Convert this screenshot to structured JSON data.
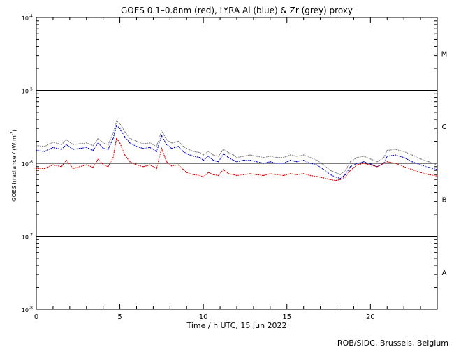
{
  "chart_data": {
    "type": "line",
    "title": "GOES 0.1–0.8nm (red), LYRA Al (blue) & Zr (grey) proxy",
    "xlabel": "Time / h UTC, 15 Jun 2022",
    "ylabel_main": "GOES Irradiance / (W m",
    "ylabel_sup": "-2",
    "ylabel_end": ")",
    "credit": "ROB/SIDC, Brussels, Belgium",
    "xlim": [
      0,
      24
    ],
    "x_ticks": [
      0,
      5,
      10,
      15,
      20
    ],
    "y_scale": "log",
    "ylim": [
      1e-08,
      0.0001
    ],
    "y_ticks": [
      {
        "value": 1e-08,
        "base": "10",
        "exp": "-8"
      },
      {
        "value": 1e-07,
        "base": "10",
        "exp": "-7"
      },
      {
        "value": 1e-06,
        "base": "10",
        "exp": "-6"
      },
      {
        "value": 1e-05,
        "base": "10",
        "exp": "-5"
      },
      {
        "value": 0.0001,
        "base": "10",
        "exp": "-4"
      }
    ],
    "reference_lines": [
      1e-07,
      1e-06,
      1e-05
    ],
    "flare_classes": [
      {
        "label": "A",
        "value": 3.2e-08
      },
      {
        "label": "B",
        "value": 3.2e-07
      },
      {
        "label": "C",
        "value": 3.2e-06
      },
      {
        "label": "M",
        "value": 3.2e-05
      }
    ],
    "series": [
      {
        "key": "grey",
        "color": "#808080",
        "x": [
          0,
          0.5,
          1,
          1.5,
          1.8,
          2.2,
          2.6,
          3,
          3.4,
          3.7,
          4,
          4.3,
          4.6,
          4.8,
          5,
          5.3,
          5.6,
          6,
          6.4,
          6.8,
          7.2,
          7.5,
          7.8,
          8.1,
          8.5,
          8.8,
          9,
          9.4,
          9.8,
          10,
          10.3,
          10.6,
          10.9,
          11.2,
          11.5,
          11.8,
          12,
          12.4,
          12.8,
          13.2,
          13.6,
          14,
          14.4,
          14.8,
          15.2,
          15.6,
          16,
          16.4,
          16.8,
          17.2,
          17.6,
          17.9,
          18.2,
          18.5,
          18.8,
          19.2,
          19.6,
          20,
          20.4,
          20.8,
          21,
          21.5,
          22,
          22.5,
          23,
          23.5,
          24
        ],
        "y": [
          1.75e-06,
          1.7e-06,
          1.95e-06,
          1.8e-06,
          2.1e-06,
          1.8e-06,
          1.85e-06,
          1.9e-06,
          1.75e-06,
          2.2e-06,
          1.9e-06,
          1.8e-06,
          2.6e-06,
          3.8e-06,
          3.5e-06,
          2.7e-06,
          2.2e-06,
          2e-06,
          1.85e-06,
          1.9e-06,
          1.7e-06,
          2.8e-06,
          2.1e-06,
          1.9e-06,
          2e-06,
          1.7e-06,
          1.6e-06,
          1.45e-06,
          1.4e-06,
          1.3e-06,
          1.45e-06,
          1.3e-06,
          1.25e-06,
          1.55e-06,
          1.4e-06,
          1.3e-06,
          1.2e-06,
          1.25e-06,
          1.3e-06,
          1.25e-06,
          1.2e-06,
          1.25e-06,
          1.2e-06,
          1.2e-06,
          1.3e-06,
          1.25e-06,
          1.3e-06,
          1.2e-06,
          1.1e-06,
          9.5e-07,
          8e-07,
          7.5e-07,
          7e-07,
          8e-07,
          1.05e-06,
          1.2e-06,
          1.25e-06,
          1.15e-06,
          1.05e-06,
          1.2e-06,
          1.5e-06,
          1.55e-06,
          1.45e-06,
          1.3e-06,
          1.15e-06,
          1.05e-06,
          9.5e-07
        ]
      },
      {
        "key": "blue",
        "color": "#0000cc",
        "x": [
          0,
          0.5,
          1,
          1.5,
          1.8,
          2.2,
          2.6,
          3,
          3.4,
          3.7,
          4,
          4.3,
          4.6,
          4.8,
          5,
          5.3,
          5.6,
          6,
          6.4,
          6.8,
          7.2,
          7.5,
          7.8,
          8.1,
          8.5,
          8.8,
          9,
          9.4,
          9.8,
          10,
          10.3,
          10.6,
          10.9,
          11.2,
          11.5,
          11.8,
          12,
          12.4,
          12.8,
          13.2,
          13.6,
          14,
          14.4,
          14.8,
          15.2,
          15.6,
          16,
          16.4,
          16.8,
          17.2,
          17.6,
          17.9,
          18.2,
          18.5,
          18.8,
          19.2,
          19.6,
          20,
          20.4,
          20.8,
          21,
          21.5,
          22,
          22.5,
          23,
          23.5,
          24
        ],
        "y": [
          1.5e-06,
          1.45e-06,
          1.65e-06,
          1.55e-06,
          1.8e-06,
          1.55e-06,
          1.6e-06,
          1.65e-06,
          1.5e-06,
          1.9e-06,
          1.6e-06,
          1.55e-06,
          2.2e-06,
          3.3e-06,
          3e-06,
          2.3e-06,
          1.9e-06,
          1.7e-06,
          1.6e-06,
          1.65e-06,
          1.45e-06,
          2.4e-06,
          1.8e-06,
          1.6e-06,
          1.7e-06,
          1.45e-06,
          1.35e-06,
          1.25e-06,
          1.2e-06,
          1.1e-06,
          1.25e-06,
          1.1e-06,
          1.05e-06,
          1.35e-06,
          1.2e-06,
          1.1e-06,
          1.05e-06,
          1.1e-06,
          1.1e-06,
          1.05e-06,
          1e-06,
          1.05e-06,
          1e-06,
          1e-06,
          1.1e-06,
          1.05e-06,
          1.1e-06,
          1e-06,
          9.5e-07,
          8.2e-07,
          7e-07,
          6.5e-07,
          6.2e-07,
          7e-07,
          9e-07,
          1e-06,
          1.05e-06,
          9.8e-07,
          9e-07,
          1e-06,
          1.25e-06,
          1.3e-06,
          1.2e-06,
          1.05e-06,
          9.5e-07,
          8.8e-07,
          8.2e-07
        ]
      },
      {
        "key": "red",
        "color": "#dd0000",
        "x": [
          0,
          0.5,
          1,
          1.5,
          1.8,
          2.2,
          2.6,
          3,
          3.4,
          3.7,
          4,
          4.3,
          4.6,
          4.8,
          5,
          5.3,
          5.6,
          6,
          6.4,
          6.8,
          7.2,
          7.5,
          7.8,
          8.1,
          8.5,
          8.8,
          9,
          9.4,
          9.8,
          10,
          10.3,
          10.6,
          10.9,
          11.2,
          11.5,
          11.8,
          12,
          12.4,
          12.8,
          13.2,
          13.6,
          14,
          14.4,
          14.8,
          15.2,
          15.6,
          16,
          16.4,
          16.8,
          17.2,
          17.6,
          17.9,
          18.2,
          18.5,
          18.8,
          19.2,
          19.6,
          20,
          20.4,
          20.8,
          21,
          21.5,
          22,
          22.5,
          23,
          23.5,
          24
        ],
        "y": [
          8.5e-07,
          8.5e-07,
          9.5e-07,
          9e-07,
          1.1e-06,
          8.5e-07,
          9e-07,
          9.5e-07,
          8.8e-07,
          1.15e-06,
          9.5e-07,
          9e-07,
          1.2e-06,
          2.2e-06,
          1.9e-06,
          1.3e-06,
          1.05e-06,
          9.5e-07,
          9e-07,
          9.5e-07,
          8.5e-07,
          1.6e-06,
          1.05e-06,
          9.2e-07,
          9.5e-07,
          8.2e-07,
          7.5e-07,
          7e-07,
          6.8e-07,
          6.5e-07,
          7.5e-07,
          7e-07,
          6.8e-07,
          8.2e-07,
          7.2e-07,
          7e-07,
          6.8e-07,
          7e-07,
          7.2e-07,
          7e-07,
          6.8e-07,
          7.2e-07,
          7e-07,
          6.8e-07,
          7.2e-07,
          7e-07,
          7.2e-07,
          6.8e-07,
          6.6e-07,
          6.3e-07,
          6e-07,
          5.8e-07,
          6e-07,
          6.5e-07,
          8e-07,
          9.5e-07,
          1e-06,
          9.5e-07,
          9e-07,
          1e-06,
          1.05e-06,
          1e-06,
          9e-07,
          8.2e-07,
          7.5e-07,
          7e-07,
          6.7e-07
        ]
      }
    ]
  }
}
